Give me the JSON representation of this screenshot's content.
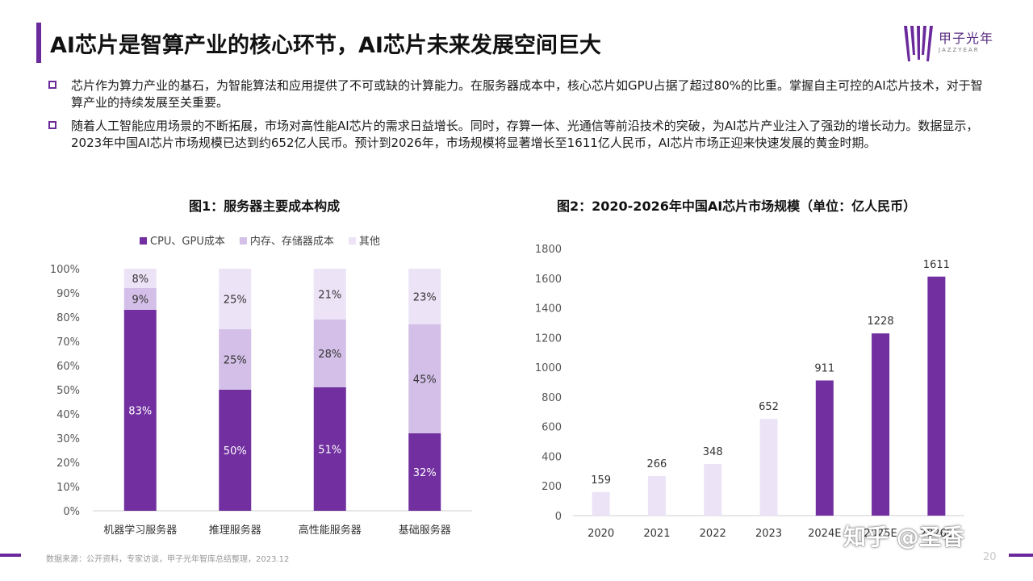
{
  "slide": {
    "title": "AI芯片是智算产业的核心环节，AI芯片未来发展空间巨大",
    "logo_text": "甲子光年",
    "logo_sub": "JAZZYEAR",
    "bullets": [
      "芯片作为算力产业的基石，为智能算法和应用提供了不可或缺的计算能力。在服务器成本中，核心芯片如GPU占据了超过80%的比重。掌握自主可控的AI芯片技术，对于智算产业的持续发展至关重要。",
      "随着人工智能应用场景的不断拓展，市场对高性能AI芯片的需求日益增长。同时，存算一体、光通信等前沿技术的突破，为AI芯片产业注入了强劲的增长动力。数据显示，2023年中国AI芯片市场规模已达到约652亿人民币。预计到2026年，市场规模将显著增长至1611亿人民币，AI芯片市场正迎来快速发展的黄金时期。"
    ],
    "source": "数据来源：公开资料，专家访谈，甲子光年智库总结整理，2023.12",
    "page_number": "20",
    "watermark": "知乎 @圣香"
  },
  "colors": {
    "accent": "#6a2a9c",
    "dark": "#712fa0",
    "medium": "#d3bfe7",
    "light": "#ece3f7"
  },
  "chart_data": [
    {
      "type": "bar",
      "stacked": true,
      "title": "图1：服务器主要成本构成",
      "categories": [
        "机器学习服务器",
        "推理服务器",
        "高性能服务器",
        "基础服务器"
      ],
      "series": [
        {
          "name": "CPU、GPU成本",
          "values": [
            83,
            50,
            51,
            32
          ],
          "color": "#712fa0",
          "label_color": "#ffffff"
        },
        {
          "name": "内存、存储器成本",
          "values": [
            9,
            25,
            28,
            45
          ],
          "color": "#d3bfe7",
          "label_color": "#333333"
        },
        {
          "name": "其他",
          "values": [
            8,
            25,
            21,
            23
          ],
          "color": "#ece3f7",
          "label_color": "#333333"
        }
      ],
      "ylim": [
        0,
        100
      ],
      "yticks": [
        "0%",
        "10%",
        "20%",
        "30%",
        "40%",
        "50%",
        "60%",
        "70%",
        "80%",
        "90%",
        "100%"
      ],
      "legend": "top",
      "grid": false
    },
    {
      "type": "bar",
      "title": "图2：2020-2026年中国AI芯片市场规模（单位：亿人民币）",
      "categories": [
        "2020",
        "2021",
        "2022",
        "2023",
        "2024E",
        "2025E",
        "2026E"
      ],
      "values": [
        159,
        266,
        348,
        652,
        911,
        1228,
        1611
      ],
      "colors": [
        "#ece3f7",
        "#ece3f7",
        "#ece3f7",
        "#ece3f7",
        "#712fa0",
        "#712fa0",
        "#712fa0"
      ],
      "ylim": [
        0,
        1800
      ],
      "yticks": [
        "0",
        "200",
        "400",
        "600",
        "800",
        "1000",
        "1200",
        "1400",
        "1600",
        "1800"
      ],
      "grid": false
    }
  ]
}
